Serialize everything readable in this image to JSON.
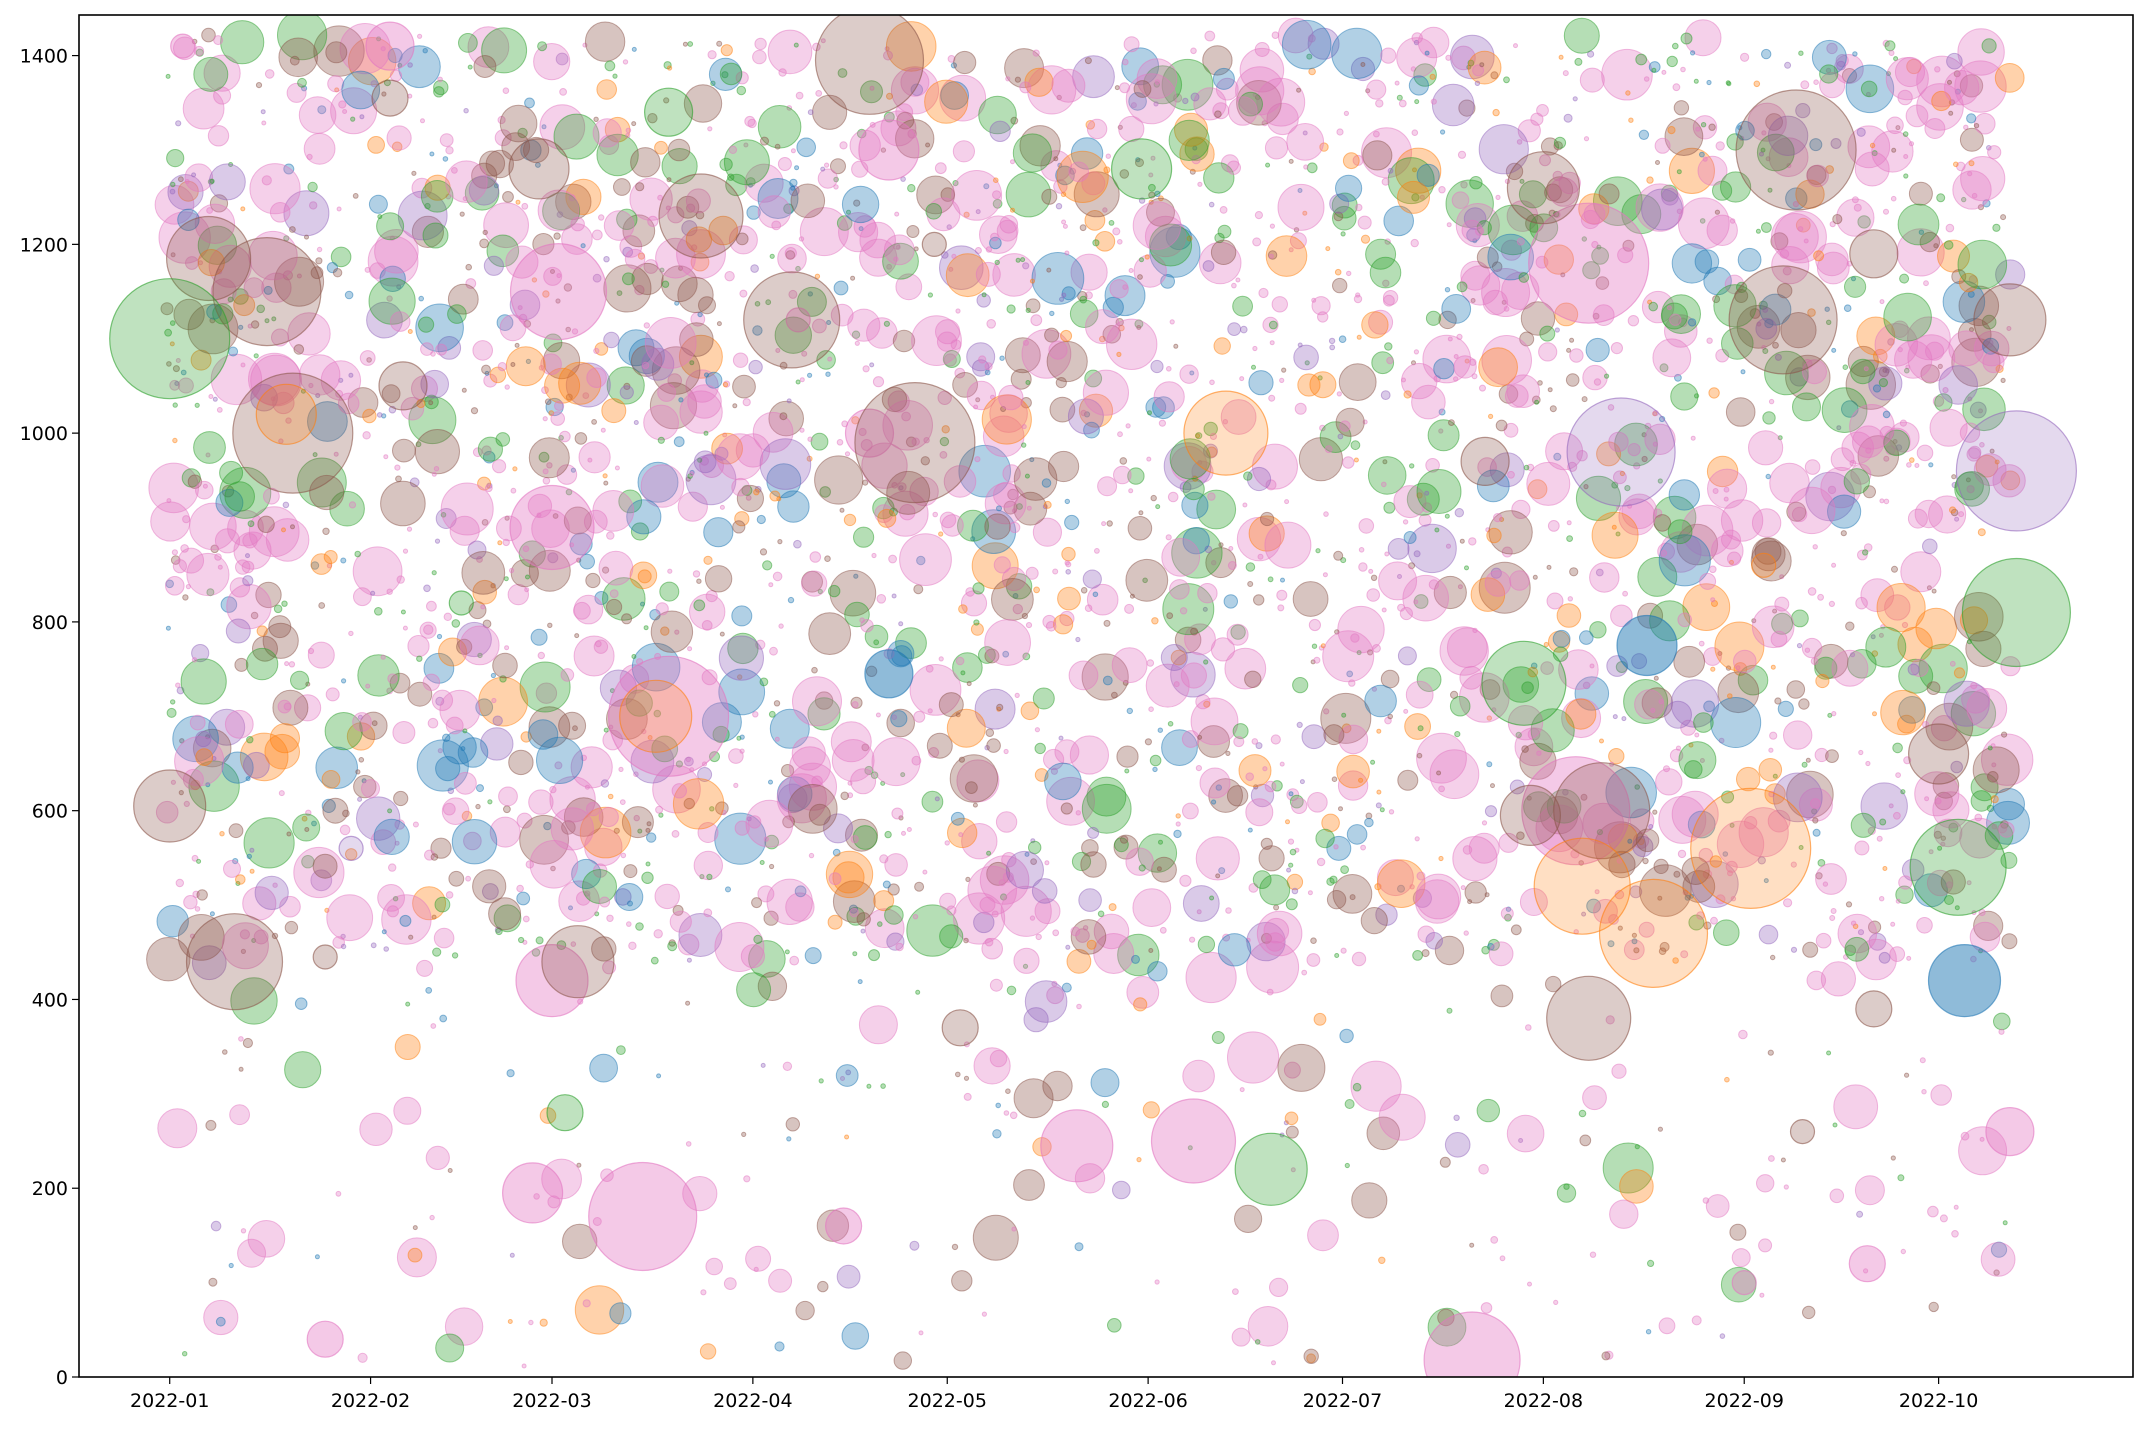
{
  "chart_data": {
    "type": "scatter",
    "title": "",
    "xlabel": "",
    "ylabel": "",
    "x_axis_type": "date",
    "xlim": [
      "2021-12-18",
      "2022-10-31"
    ],
    "ylim": [
      0,
      1443
    ],
    "grid": false,
    "x_ticks": [
      {
        "value": "2022-01-01",
        "label": "2022-01"
      },
      {
        "value": "2022-02-01",
        "label": "2022-02"
      },
      {
        "value": "2022-03-01",
        "label": "2022-03"
      },
      {
        "value": "2022-04-01",
        "label": "2022-04"
      },
      {
        "value": "2022-05-01",
        "label": "2022-05"
      },
      {
        "value": "2022-06-01",
        "label": "2022-06"
      },
      {
        "value": "2022-07-01",
        "label": "2022-07"
      },
      {
        "value": "2022-08-01",
        "label": "2022-08"
      },
      {
        "value": "2022-09-01",
        "label": "2022-09"
      },
      {
        "value": "2022-10-01",
        "label": "2022-10"
      }
    ],
    "y_ticks": [
      {
        "value": 0,
        "label": "0"
      },
      {
        "value": 200,
        "label": "200"
      },
      {
        "value": 400,
        "label": "400"
      },
      {
        "value": 600,
        "label": "600"
      },
      {
        "value": 800,
        "label": "800"
      },
      {
        "value": 1000,
        "label": "1000"
      },
      {
        "value": 1200,
        "label": "1200"
      },
      {
        "value": 1400,
        "label": "1400"
      }
    ],
    "series": [
      {
        "color": "#e377c2",
        "opacity": 0.4,
        "points": [
          {
            "date": "2022-01-03",
            "y": 1410
          },
          {
            "date": "2022-01-25",
            "y": 40
          },
          {
            "date": "2022-02-04",
            "y": 1410
          },
          {
            "date": "2022-02-26",
            "y": 195
          },
          {
            "date": "2022-03-01",
            "y": 420
          },
          {
            "date": "2022-03-01",
            "y": 900
          },
          {
            "date": "2022-03-02",
            "y": 1150
          },
          {
            "date": "2022-03-15",
            "y": 170
          },
          {
            "date": "2022-03-19",
            "y": 700
          },
          {
            "date": "2022-04-08",
            "y": 1120
          },
          {
            "date": "2022-04-15",
            "y": 160
          },
          {
            "date": "2022-04-19",
            "y": 1000
          },
          {
            "date": "2022-04-22",
            "y": 1300
          },
          {
            "date": "2022-05-21",
            "y": 245
          },
          {
            "date": "2022-06-08",
            "y": 250
          },
          {
            "date": "2022-07-21",
            "y": 18
          },
          {
            "date": "2022-08-06",
            "y": 600
          },
          {
            "date": "2022-08-08",
            "y": 1180
          },
          {
            "date": "2022-09-01",
            "y": 100
          },
          {
            "date": "2022-09-20",
            "y": 120
          },
          {
            "date": "2022-10-12",
            "y": 260
          }
        ]
      },
      {
        "color": "#8c564b",
        "opacity": 0.3,
        "points": [
          {
            "date": "2022-01-01",
            "y": 605
          },
          {
            "date": "2022-01-07",
            "y": 1185
          },
          {
            "date": "2022-01-11",
            "y": 440
          },
          {
            "date": "2022-01-16",
            "y": 1150
          },
          {
            "date": "2022-01-20",
            "y": 1000
          },
          {
            "date": "2022-01-25",
            "y": 445
          },
          {
            "date": "2022-02-04",
            "y": 1355
          },
          {
            "date": "2022-02-06",
            "y": 1050
          },
          {
            "date": "2022-02-27",
            "y": 1280
          },
          {
            "date": "2022-03-05",
            "y": 440
          },
          {
            "date": "2022-03-24",
            "y": 1230
          },
          {
            "date": "2022-04-07",
            "y": 1120
          },
          {
            "date": "2022-04-19",
            "y": 1395
          },
          {
            "date": "2022-04-26",
            "y": 990
          },
          {
            "date": "2022-04-29",
            "y": 1200
          },
          {
            "date": "2022-05-03",
            "y": 370
          },
          {
            "date": "2022-07-23",
            "y": 970
          },
          {
            "date": "2022-07-30",
            "y": 595
          },
          {
            "date": "2022-08-01",
            "y": 1260
          },
          {
            "date": "2022-08-08",
            "y": 380
          },
          {
            "date": "2022-08-10",
            "y": 600
          },
          {
            "date": "2022-09-07",
            "y": 1120
          },
          {
            "date": "2022-09-09",
            "y": 1300
          },
          {
            "date": "2022-09-10",
            "y": 260
          },
          {
            "date": "2022-09-21",
            "y": 390
          },
          {
            "date": "2022-09-21",
            "y": 1190
          },
          {
            "date": "2022-10-01",
            "y": 660
          },
          {
            "date": "2022-10-12",
            "y": 1120
          }
        ]
      },
      {
        "color": "#2ca02c",
        "opacity": 0.3,
        "points": [
          {
            "date": "2022-01-01",
            "y": 1100
          },
          {
            "date": "2022-02-15",
            "y": 820
          },
          {
            "date": "2022-03-03",
            "y": 280
          },
          {
            "date": "2022-03-19",
            "y": 1340
          },
          {
            "date": "2022-05-31",
            "y": 1280
          },
          {
            "date": "2022-06-20",
            "y": 220
          },
          {
            "date": "2022-07-29",
            "y": 735
          },
          {
            "date": "2022-10-04",
            "y": 540
          },
          {
            "date": "2022-10-13",
            "y": 810
          }
        ]
      },
      {
        "color": "#ff7f0e",
        "opacity": 0.25,
        "points": [
          {
            "date": "2022-01-19",
            "y": 1020
          },
          {
            "date": "2022-03-17",
            "y": 700
          },
          {
            "date": "2022-06-13",
            "y": 1000
          },
          {
            "date": "2022-08-07",
            "y": 520
          },
          {
            "date": "2022-08-18",
            "y": 470
          },
          {
            "date": "2022-09-02",
            "y": 560
          },
          {
            "date": "2022-09-04",
            "y": 860
          }
        ]
      },
      {
        "color": "#9467bd",
        "opacity": 0.25,
        "points": [
          {
            "date": "2022-08-13",
            "y": 980
          },
          {
            "date": "2022-10-13",
            "y": 960
          },
          {
            "date": "2022-01-29",
            "y": 560
          }
        ]
      },
      {
        "color": "#1f77b4",
        "opacity": 0.5,
        "points": [
          {
            "date": "2022-04-22",
            "y": 745
          },
          {
            "date": "2022-08-17",
            "y": 775
          },
          {
            "date": "2022-10-05",
            "y": 420
          }
        ]
      }
    ]
  }
}
